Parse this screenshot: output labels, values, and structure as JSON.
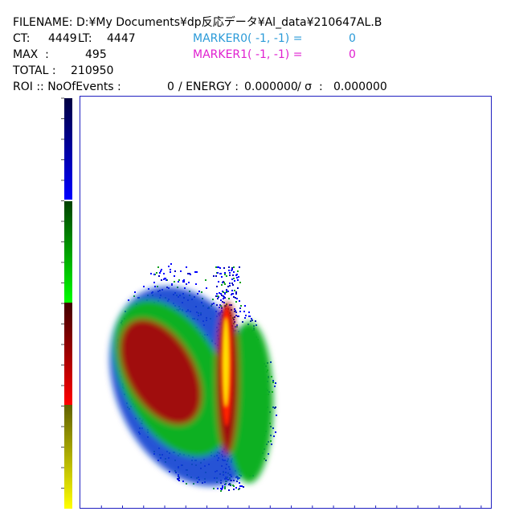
{
  "header": {
    "filename": "FILENAME: D:¥My Documents¥dp反応データ¥Al_data¥210647AL.B",
    "ct_label": "CT:",
    "ct_value": "4449",
    "lt_label": "LT:",
    "lt_value": "4447",
    "marker0_label": "MARKER0( -1, -1) =",
    "marker0_value": "0",
    "max_label": "MAX  :",
    "max_value": "495",
    "marker1_label": "MARKER1( -1, -1) =",
    "marker1_value": "0",
    "total_label": "TOTAL :",
    "total_value": "210950",
    "roi_label": "ROI :: NoOfEvents :",
    "roi_events": "0",
    "energy_label": "/ ENERGY :",
    "energy_value": "0.000000",
    "sigma_label": "/ σ  :",
    "sigma_value": "0.000000"
  }
}
